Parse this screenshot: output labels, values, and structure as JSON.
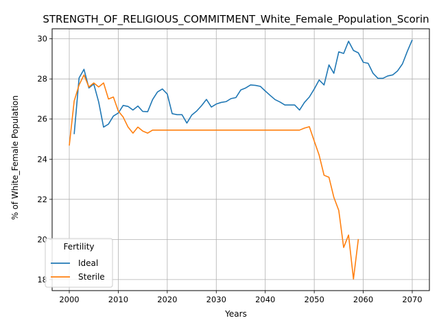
{
  "chart_data": {
    "type": "line",
    "title": "STRENGTH_OF_RELIGIOUS_COMMITMENT_White_Female_Population_Scorin",
    "xlabel": "Years",
    "ylabel": "% of White_Female Population",
    "xlim": [
      1996.5,
      2073.5
    ],
    "ylim": [
      17.45,
      30.5
    ],
    "x_ticks": [
      2000,
      2010,
      2020,
      2030,
      2040,
      2050,
      2060,
      2070
    ],
    "y_ticks": [
      18,
      20,
      22,
      24,
      26,
      28,
      30
    ],
    "grid": true,
    "legend": {
      "title": "Fertility",
      "placement": "lower-left"
    },
    "series": [
      {
        "name": "Ideal",
        "color": "#1f77b4",
        "x": [
          2001,
          2002,
          2003,
          2004,
          2005,
          2006,
          2007,
          2008,
          2009,
          2010,
          2011,
          2012,
          2013,
          2014,
          2015,
          2016,
          2017,
          2018,
          2019,
          2020,
          2021,
          2022,
          2023,
          2024,
          2025,
          2026,
          2027,
          2028,
          2029,
          2030,
          2031,
          2032,
          2033,
          2034,
          2035,
          2036,
          2037,
          2038,
          2039,
          2040,
          2041,
          2042,
          2043,
          2044,
          2045,
          2046,
          2047,
          2048,
          2049,
          2050,
          2051,
          2052,
          2053,
          2054,
          2055,
          2056,
          2057,
          2058,
          2059,
          2060,
          2061,
          2062,
          2063,
          2064,
          2065,
          2066,
          2067,
          2068,
          2069,
          2070
        ],
        "y": [
          25.25,
          28.05,
          28.48,
          27.55,
          27.75,
          26.85,
          25.6,
          25.75,
          26.15,
          26.3,
          26.68,
          26.63,
          26.45,
          26.65,
          26.38,
          26.37,
          26.97,
          27.35,
          27.5,
          27.25,
          26.27,
          26.22,
          26.22,
          25.8,
          26.2,
          26.4,
          26.67,
          26.98,
          26.6,
          26.75,
          26.83,
          26.87,
          27.02,
          27.07,
          27.45,
          27.55,
          27.7,
          27.68,
          27.63,
          27.4,
          27.18,
          26.97,
          26.85,
          26.7,
          26.7,
          26.7,
          26.45,
          26.83,
          27.1,
          27.5,
          27.95,
          27.7,
          28.7,
          28.28,
          29.35,
          29.27,
          29.88,
          29.42,
          29.3,
          28.83,
          28.78,
          28.28,
          28.03,
          28.03,
          28.15,
          28.2,
          28.4,
          28.75,
          29.38,
          29.95
        ]
      },
      {
        "name": "Sterile",
        "color": "#ff7f0e",
        "x": [
          2000,
          2001,
          2002,
          2003,
          2004,
          2005,
          2006,
          2007,
          2008,
          2009,
          2010,
          2011,
          2012,
          2013,
          2014,
          2015,
          2016,
          2017,
          2018,
          2019,
          2020,
          2021,
          2022,
          2023,
          2024,
          2025,
          2026,
          2027,
          2028,
          2029,
          2030,
          2031,
          2032,
          2033,
          2034,
          2035,
          2036,
          2037,
          2038,
          2039,
          2040,
          2041,
          2042,
          2043,
          2044,
          2045,
          2046,
          2047,
          2048,
          2049,
          2050,
          2051,
          2052,
          2053,
          2054,
          2055,
          2056,
          2057,
          2058,
          2059
        ],
        "y": [
          24.68,
          26.9,
          27.7,
          28.2,
          27.6,
          27.8,
          27.6,
          27.8,
          27.0,
          27.1,
          26.4,
          26.1,
          25.6,
          25.3,
          25.6,
          25.4,
          25.3,
          25.45,
          25.45,
          25.45,
          25.45,
          25.45,
          25.45,
          25.45,
          25.45,
          25.45,
          25.45,
          25.45,
          25.45,
          25.45,
          25.45,
          25.45,
          25.45,
          25.45,
          25.45,
          25.45,
          25.45,
          25.45,
          25.45,
          25.45,
          25.45,
          25.45,
          25.45,
          25.45,
          25.45,
          25.45,
          25.45,
          25.45,
          25.55,
          25.62,
          24.9,
          24.2,
          23.2,
          23.1,
          22.1,
          21.45,
          19.6,
          20.22,
          18.03,
          20.02
        ]
      }
    ]
  }
}
